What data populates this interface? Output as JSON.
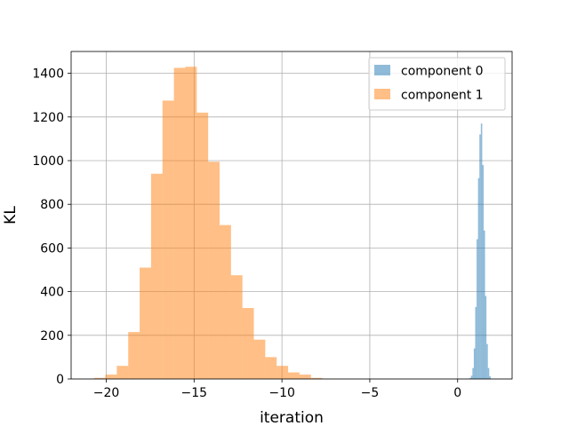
{
  "chart_data": {
    "type": "bar",
    "xlabel": "iteration",
    "ylabel": "KL",
    "xlim": [
      -22.0,
      3.1
    ],
    "ylim": [
      0,
      1500
    ],
    "grid": true,
    "legend_position": "top-right",
    "x_ticks": [
      -20,
      -15,
      -10,
      -5,
      0
    ],
    "x_tick_labels": [
      "−20",
      "−15",
      "−10",
      "−5",
      "0"
    ],
    "y_ticks": [
      0,
      200,
      400,
      600,
      800,
      1000,
      1200,
      1400
    ],
    "y_tick_labels": [
      "0",
      "200",
      "400",
      "600",
      "800",
      "1000",
      "1200",
      "1400"
    ],
    "series": [
      {
        "name": "component 0",
        "color": "#1f77b4",
        "opacity": 0.5,
        "bin_edges": [
          0.68,
          0.76,
          0.84,
          0.92,
          1.0,
          1.08,
          1.16,
          1.24,
          1.32,
          1.4,
          1.48,
          1.56,
          1.64,
          1.72,
          1.8,
          1.88
        ],
        "counts": [
          5,
          15,
          50,
          140,
          330,
          640,
          920,
          1120,
          1170,
          980,
          680,
          380,
          160,
          50,
          12
        ]
      },
      {
        "name": "component 1",
        "color": "#ff7f0e",
        "opacity": 0.5,
        "bin_edges": [
          -20.7,
          -20.05,
          -19.4,
          -18.75,
          -18.1,
          -17.45,
          -16.8,
          -16.15,
          -15.5,
          -14.85,
          -14.2,
          -13.55,
          -12.9,
          -12.25,
          -11.6,
          -10.95,
          -10.3,
          -9.65,
          -9.0,
          -8.35,
          -7.7
        ],
        "counts": [
          5,
          20,
          60,
          215,
          510,
          940,
          1275,
          1425,
          1430,
          1220,
          995,
          705,
          475,
          325,
          180,
          100,
          60,
          30,
          20,
          5
        ]
      }
    ]
  }
}
